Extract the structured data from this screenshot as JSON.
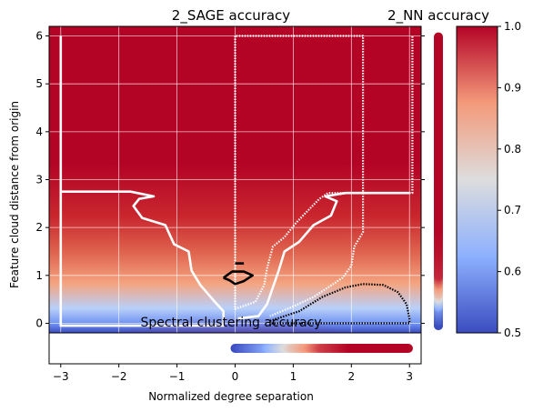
{
  "chart_data": [
    {
      "type": "heatmap",
      "title": "2_SAGE accuracy",
      "xlabel": "Normalized degree separation",
      "ylabel": "Feature cloud distance from origin",
      "xlim": [
        -3.2,
        3.2
      ],
      "ylim": [
        -0.2,
        6.2
      ],
      "x_ticks": [
        -3,
        -2,
        -1,
        0,
        1,
        2,
        3
      ],
      "y_ticks": [
        0,
        1,
        2,
        3,
        4,
        5,
        6
      ],
      "grid": true,
      "colormap": "coolwarm",
      "contours": [
        {
          "color": "#ffffff",
          "style": "solid",
          "points": [
            [
              -3.0,
              6.0
            ],
            [
              -3.0,
              -0.05
            ],
            [
              -0.2,
              -0.05
            ],
            [
              -0.2,
              0.25
            ],
            [
              -0.35,
              0.45
            ],
            [
              -0.6,
              0.8
            ],
            [
              -0.75,
              1.1
            ],
            [
              -0.8,
              1.5
            ],
            [
              -1.05,
              1.65
            ],
            [
              -1.2,
              2.05
            ],
            [
              -1.6,
              2.2
            ],
            [
              -1.75,
              2.45
            ],
            [
              -1.65,
              2.6
            ],
            [
              -1.4,
              2.65
            ],
            [
              -1.8,
              2.75
            ],
            [
              -3.0,
              2.75
            ]
          ]
        },
        {
          "color": "#ffffff",
          "style": "solid",
          "points": [
            [
              0.05,
              0.1
            ],
            [
              0.4,
              0.15
            ],
            [
              0.55,
              0.4
            ],
            [
              0.65,
              0.75
            ],
            [
              0.75,
              1.1
            ],
            [
              0.85,
              1.5
            ],
            [
              1.1,
              1.7
            ],
            [
              1.35,
              2.05
            ],
            [
              1.65,
              2.25
            ],
            [
              1.75,
              2.55
            ],
            [
              1.55,
              2.65
            ],
            [
              1.9,
              2.72
            ],
            [
              3.0,
              2.72
            ]
          ]
        },
        {
          "color": "#ffffff",
          "style": "dotted",
          "points": [
            [
              0.0,
              6.0
            ],
            [
              0.0,
              0.3
            ],
            [
              0.35,
              0.45
            ],
            [
              0.5,
              0.8
            ],
            [
              0.55,
              1.15
            ],
            [
              0.65,
              1.6
            ],
            [
              0.85,
              1.8
            ],
            [
              1.05,
              2.1
            ],
            [
              1.25,
              2.35
            ],
            [
              1.45,
              2.6
            ],
            [
              1.6,
              2.72
            ],
            [
              2.2,
              2.72
            ],
            [
              2.2,
              6.0
            ],
            [
              0.0,
              6.0
            ]
          ]
        },
        {
          "color": "#ffffff",
          "style": "dotted",
          "points": [
            [
              2.2,
              2.72
            ],
            [
              2.2,
              1.9
            ],
            [
              2.05,
              1.6
            ],
            [
              2.0,
              1.2
            ],
            [
              1.85,
              0.95
            ],
            [
              1.6,
              0.75
            ],
            [
              1.35,
              0.55
            ],
            [
              1.0,
              0.35
            ],
            [
              0.6,
              0.15
            ]
          ]
        },
        {
          "color": "#ffffff",
          "style": "dotted",
          "points": [
            [
              2.2,
              2.72
            ],
            [
              3.05,
              2.72
            ],
            [
              3.05,
              6.0
            ]
          ]
        },
        {
          "color": "#000000",
          "style": "solid",
          "points": [
            [
              -0.2,
              0.95
            ],
            [
              -0.05,
              1.08
            ],
            [
              0.15,
              1.08
            ],
            [
              0.3,
              1.0
            ],
            [
              0.15,
              0.88
            ],
            [
              0.0,
              0.82
            ],
            [
              -0.1,
              0.9
            ],
            [
              -0.2,
              0.95
            ]
          ]
        },
        {
          "color": "#000000",
          "style": "solid",
          "points": [
            [
              0.0,
              1.25
            ],
            [
              0.15,
              1.25
            ]
          ]
        },
        {
          "color": "#000000",
          "style": "dotted",
          "points": [
            [
              0.6,
              0.05
            ],
            [
              1.1,
              0.25
            ],
            [
              1.5,
              0.55
            ],
            [
              1.9,
              0.75
            ],
            [
              2.2,
              0.82
            ],
            [
              2.55,
              0.8
            ],
            [
              2.8,
              0.65
            ],
            [
              2.95,
              0.4
            ],
            [
              3.0,
              0.1
            ],
            [
              3.0,
              0.0
            ],
            [
              0.6,
              0.0
            ]
          ]
        }
      ]
    },
    {
      "type": "scatter",
      "title": "2_NN accuracy",
      "y_ticks": [
        0,
        1,
        2,
        3,
        4,
        5,
        6
      ],
      "ylim": [
        -0.2,
        6.2
      ],
      "colormap": "coolwarm",
      "y": [
        0.0,
        0.3,
        0.6,
        1.0,
        1.5,
        2.0,
        3.0,
        4.0,
        5.0,
        6.0
      ],
      "values": [
        0.5,
        0.58,
        0.8,
        0.97,
        0.99,
        1.0,
        1.0,
        1.0,
        1.0,
        1.0
      ]
    },
    {
      "type": "scatter",
      "title": "Spectral clustering accuracy",
      "x": [
        0.0,
        0.5,
        1.0,
        1.5,
        2.0,
        2.5,
        3.0
      ],
      "values": [
        0.5,
        0.6,
        0.8,
        0.95,
        1.0,
        1.0,
        1.0
      ],
      "colormap": "coolwarm"
    },
    {
      "type": "colorbar",
      "ticks": [
        0.5,
        0.6,
        0.7,
        0.8,
        0.9,
        1.0
      ],
      "tick_labels": [
        "0.5",
        "0.6",
        "0.7",
        "0.8",
        "0.9",
        "1.0"
      ],
      "range": [
        0.5,
        1.0
      ],
      "colormap": "coolwarm"
    }
  ]
}
